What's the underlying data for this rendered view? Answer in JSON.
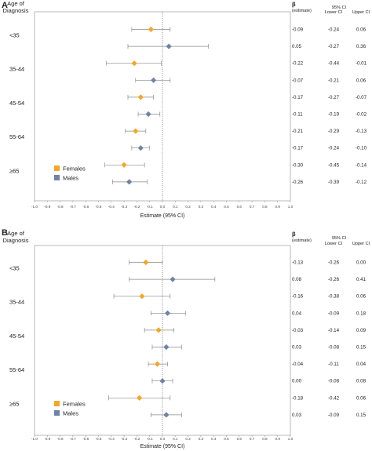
{
  "chart_data": [
    {
      "type": "forest",
      "panel": "A",
      "row_header": [
        "Age of",
        "Diagnosis"
      ],
      "xlabel": "Estimate (95% CI)",
      "xlim": [
        -1.0,
        1.0
      ],
      "xticks": [
        "-1.0",
        "-0.9",
        "-0.8",
        "-0.7",
        "-0.6",
        "-0.5",
        "-0.4",
        "-0.3",
        "-0.2",
        "-0.1",
        "0.0",
        "0.1",
        "0.2",
        "0.3",
        "0.4",
        "0.5",
        "0.6",
        "0.7",
        "0.8",
        "0.9",
        "1.0"
      ],
      "legend": {
        "placement": "bottom-left",
        "entries": [
          "Females",
          "Males"
        ]
      },
      "colors": {
        "Females": "#f5a623",
        "Males": "#6e83a8"
      },
      "groups": [
        "<35",
        "35-44",
        "45-54",
        "55-64",
        "≥65"
      ],
      "table_headers": {
        "beta": "β",
        "beta_sub": "(estimate)",
        "ci": "95% CI",
        "lower": "Lower CI",
        "upper": "Upper CI"
      },
      "rows": [
        {
          "group": "<35",
          "sex": "Females",
          "estimate": -0.09,
          "lower": -0.24,
          "upper": 0.06,
          "estimate_text": "-0.09",
          "lower_text": "-0.24",
          "upper_text": "0.06"
        },
        {
          "group": "<35",
          "sex": "Males",
          "estimate": 0.05,
          "lower": -0.27,
          "upper": 0.36,
          "estimate_text": "0.05",
          "lower_text": "-0.27",
          "upper_text": "0.36"
        },
        {
          "group": "35-44",
          "sex": "Females",
          "estimate": -0.22,
          "lower": -0.44,
          "upper": -0.01,
          "estimate_text": "-0.22",
          "lower_text": "-0.44",
          "upper_text": "-0.01"
        },
        {
          "group": "35-44",
          "sex": "Males",
          "estimate": -0.07,
          "lower": -0.21,
          "upper": 0.06,
          "estimate_text": "-0.07",
          "lower_text": "-0.21",
          "upper_text": "0.06"
        },
        {
          "group": "45-54",
          "sex": "Females",
          "estimate": -0.17,
          "lower": -0.27,
          "upper": -0.07,
          "estimate_text": "-0.17",
          "lower_text": "-0.27",
          "upper_text": "-0.07"
        },
        {
          "group": "45-54",
          "sex": "Males",
          "estimate": -0.11,
          "lower": -0.19,
          "upper": -0.02,
          "estimate_text": "-0.11",
          "lower_text": "-0.19",
          "upper_text": "-0.02"
        },
        {
          "group": "55-64",
          "sex": "Females",
          "estimate": -0.21,
          "lower": -0.29,
          "upper": -0.13,
          "estimate_text": "-0.21",
          "lower_text": "-0.29",
          "upper_text": "-0.13"
        },
        {
          "group": "55-64",
          "sex": "Males",
          "estimate": -0.17,
          "lower": -0.24,
          "upper": -0.1,
          "estimate_text": "-0.17",
          "lower_text": "-0.24",
          "upper_text": "-0.10"
        },
        {
          "group": "≥65",
          "sex": "Females",
          "estimate": -0.3,
          "lower": -0.45,
          "upper": -0.14,
          "estimate_text": "-0.30",
          "lower_text": "-0.45",
          "upper_text": "-0.14"
        },
        {
          "group": "≥65",
          "sex": "Males",
          "estimate": -0.26,
          "lower": -0.39,
          "upper": -0.12,
          "estimate_text": "-0.26",
          "lower_text": "-0.39",
          "upper_text": "-0.12"
        }
      ]
    },
    {
      "type": "forest",
      "panel": "B",
      "row_header": [
        "Age of",
        "Diagnosis"
      ],
      "xlabel": "Estimate (95% CI)",
      "xlim": [
        -1.0,
        1.0
      ],
      "xticks": [
        "-1.0",
        "-0.9",
        "-0.8",
        "-0.7",
        "-0.6",
        "-0.5",
        "-0.4",
        "-0.3",
        "-0.2",
        "-0.1",
        "0.0",
        "0.1",
        "0.2",
        "0.3",
        "0.4",
        "0.5",
        "0.6",
        "0.7",
        "0.8",
        "0.9",
        "1.0"
      ],
      "legend": {
        "placement": "bottom-left",
        "entries": [
          "Females",
          "Males"
        ]
      },
      "colors": {
        "Females": "#f5a623",
        "Males": "#6e83a8"
      },
      "groups": [
        "<35",
        "35-44",
        "45-54",
        "55-64",
        "≥65"
      ],
      "table_headers": {
        "beta": "β",
        "beta_sub": "(estimate)",
        "ci": "95% CI",
        "lower": "Lower CI",
        "upper": "Upper CI"
      },
      "rows": [
        {
          "group": "<35",
          "sex": "Females",
          "estimate": -0.13,
          "lower": -0.26,
          "upper": 0.0,
          "estimate_text": "-0.13",
          "lower_text": "-0.26",
          "upper_text": "0.00"
        },
        {
          "group": "<35",
          "sex": "Males",
          "estimate": 0.08,
          "lower": -0.26,
          "upper": 0.41,
          "estimate_text": "0.08",
          "lower_text": "-0.26",
          "upper_text": "0.41"
        },
        {
          "group": "35-44",
          "sex": "Females",
          "estimate": -0.16,
          "lower": -0.38,
          "upper": 0.06,
          "estimate_text": "-0.16",
          "lower_text": "-0.38",
          "upper_text": "0.06"
        },
        {
          "group": "35-44",
          "sex": "Males",
          "estimate": 0.04,
          "lower": -0.09,
          "upper": 0.18,
          "estimate_text": "0.04",
          "lower_text": "-0.09",
          "upper_text": "0.18"
        },
        {
          "group": "45-54",
          "sex": "Females",
          "estimate": -0.03,
          "lower": -0.14,
          "upper": 0.09,
          "estimate_text": "-0.03",
          "lower_text": "-0.14",
          "upper_text": "0.09"
        },
        {
          "group": "45-54",
          "sex": "Males",
          "estimate": 0.03,
          "lower": -0.08,
          "upper": 0.15,
          "estimate_text": "0.03",
          "lower_text": "-0.08",
          "upper_text": "0.15"
        },
        {
          "group": "55-64",
          "sex": "Females",
          "estimate": -0.04,
          "lower": -0.11,
          "upper": 0.04,
          "estimate_text": "-0.04",
          "lower_text": "-0.11",
          "upper_text": "0.04"
        },
        {
          "group": "55-64",
          "sex": "Males",
          "estimate": 0.0,
          "lower": -0.08,
          "upper": 0.08,
          "estimate_text": "0.00",
          "lower_text": "-0.08",
          "upper_text": "0.08"
        },
        {
          "group": "≥65",
          "sex": "Females",
          "estimate": -0.18,
          "lower": -0.42,
          "upper": 0.06,
          "estimate_text": "-0.18",
          "lower_text": "-0.42",
          "upper_text": "0.06"
        },
        {
          "group": "≥65",
          "sex": "Males",
          "estimate": 0.03,
          "lower": -0.09,
          "upper": 0.15,
          "estimate_text": "0.03",
          "lower_text": "-0.09",
          "upper_text": "0.15"
        }
      ]
    }
  ]
}
